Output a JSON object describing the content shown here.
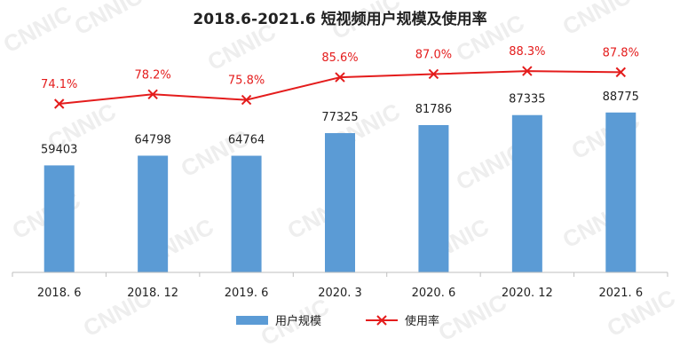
{
  "watermark_text": "CNNIC",
  "colors": {
    "bar": "#5b9bd5",
    "line": "#e41c1c",
    "title": "#222222",
    "axis": "#bfbfbf",
    "label": "#222222",
    "watermark": "#eeeeee"
  },
  "chart_data": {
    "type": "bar",
    "title": "2018.6-2021.6 短视频用户规模及使用率",
    "categories": [
      "2018. 6",
      "2018. 12",
      "2019. 6",
      "2020. 3",
      "2020. 6",
      "2020. 12",
      "2021. 6"
    ],
    "series": [
      {
        "name": "用户规模",
        "type": "bar",
        "values": [
          59403,
          64798,
          64764,
          77325,
          81786,
          87335,
          88775
        ],
        "labels": [
          "59403",
          "64798",
          "64764",
          "77325",
          "81786",
          "87335",
          "88775"
        ]
      },
      {
        "name": "使用率",
        "type": "line",
        "values": [
          74.1,
          78.2,
          75.8,
          85.6,
          87.0,
          88.3,
          87.8
        ],
        "labels": [
          "74.1%",
          "78.2%",
          "75.8%",
          "85.6%",
          "87.0%",
          "88.3%",
          "87.8%"
        ]
      }
    ],
    "bar_axis_range": [
      0,
      100000
    ],
    "line_axis_range": [
      0,
      100
    ],
    "legend_position": "bottom",
    "grid": false
  }
}
